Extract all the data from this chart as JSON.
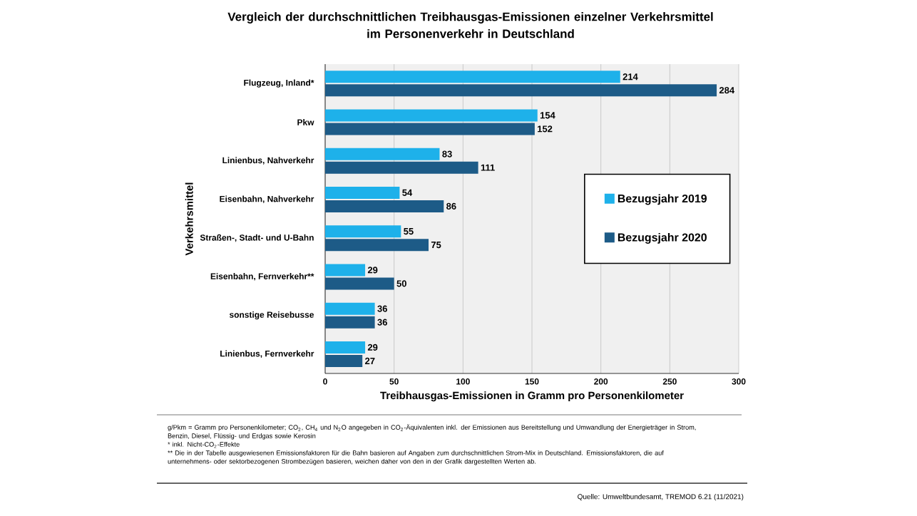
{
  "chart_data": {
    "type": "bar",
    "orientation": "horizontal",
    "title": "Vergleich der durchschnittlichen Treibhausgas-Emissionen einzelner Verkehrsmittel\nim Personenverkehr in Deutschland",
    "xlabel": "Treibhausgas-Emissionen in Gramm pro Personenkilometer",
    "ylabel": "Verkehrsmittel",
    "categories": [
      "Flugzeug, Inland*",
      "Pkw",
      "Linienbus, Nahverkehr",
      "Eisenbahn, Nahverkehr",
      "Straßen-, Stadt- und U-Bahn",
      "Eisenbahn, Fernverkehr**",
      "sonstige Reisebusse",
      "Linienbus, Fernverkehr"
    ],
    "series": [
      {
        "name": "Bezugsjahr 2019",
        "color": "#1eb1ea",
        "values": [
          214,
          154,
          83,
          54,
          55,
          29,
          36,
          29
        ]
      },
      {
        "name": "Bezugsjahr 2020",
        "color": "#1d5b87",
        "values": [
          284,
          152,
          111,
          86,
          75,
          50,
          36,
          27
        ]
      }
    ],
    "xlim": [
      0,
      300
    ],
    "xticks": [
      0,
      50,
      100,
      150,
      200,
      250,
      300
    ],
    "grid": "x",
    "legend": "right",
    "data_labels": true,
    "annotations": [
      "g/Pkm = Gramm pro Personenkilometer; CO$_{2}$, CH$_{4}$ und N$_{2}$O angegeben in CO$_{2}$-Äquivalenten inkl. der Emissionen aus Bereitstellung und Umwandlung der Energieträger in Strom, Benzin, Diesel, Flüssig- und Erdgas sowie Kerosin",
      "* inkl. Nicht-CO$_{2}$-Effekte",
      "** Die in der Tabelle ausgewiesenen Emissionsfaktoren für die Bahn basieren auf Angaben zum durchschnittlichen Strom-Mix in Deutschland. Emissionsfaktoren, die auf unternehmens- oder sektorbezogenen Strombezügen basieren, weichen daher von den in der Grafik dargestellten Werten ab.",
      "Quelle: Umweltbundesamt, TREMOD 6.21 (11/2021)"
    ]
  }
}
